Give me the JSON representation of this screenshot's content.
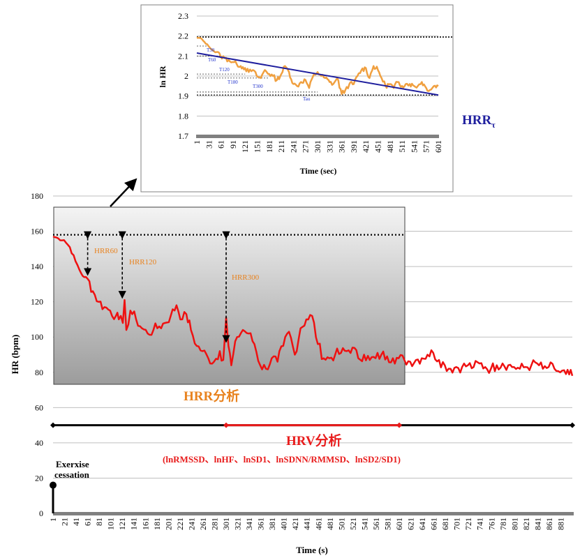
{
  "colors": {
    "hr_line": "#ee1111",
    "inset_line": "#f0a040",
    "hrr_text": "#e8821e",
    "hrv_text": "#e81b1b",
    "tau_line": "#1f1f9e",
    "annotation_blue": "#2233cc",
    "grid": "#bfbfbf",
    "axis_bar": "#808080",
    "black": "#000000"
  },
  "chart_data": [
    {
      "type": "line",
      "xlabel": "Time (s)",
      "ylabel": "HR (bpm)",
      "ylim": [
        0,
        180
      ],
      "yticks": [
        0,
        20,
        40,
        60,
        80,
        100,
        120,
        140,
        160,
        180
      ],
      "xlim": [
        1,
        901
      ],
      "xticks": [
        1,
        21,
        41,
        61,
        81,
        101,
        121,
        141,
        161,
        181,
        201,
        221,
        241,
        261,
        281,
        301,
        321,
        341,
        361,
        381,
        401,
        421,
        441,
        461,
        481,
        501,
        521,
        541,
        561,
        581,
        601,
        621,
        641,
        661,
        681,
        701,
        721,
        741,
        761,
        781,
        801,
        821,
        841,
        861,
        881
      ],
      "grid": true,
      "series": [
        {
          "x": [
            1,
            10,
            20,
            30,
            40,
            50,
            55,
            61,
            70,
            80,
            90,
            100,
            110,
            115,
            122,
            125,
            128,
            135,
            145,
            155,
            165,
            175,
            185,
            195,
            205,
            215,
            225,
            232,
            240,
            250,
            260,
            270,
            280,
            290,
            296,
            301,
            305,
            310,
            320,
            330,
            340,
            350,
            360,
            370,
            380,
            390,
            400,
            410,
            420,
            430,
            440,
            450,
            460,
            470,
            480,
            490,
            500,
            510,
            520,
            530,
            540,
            550,
            560,
            570,
            580,
            590,
            600,
            610,
            620,
            630,
            640,
            650,
            660,
            670,
            680,
            690,
            700,
            710,
            720,
            730,
            740,
            750,
            760,
            770,
            780,
            790,
            800,
            810,
            820,
            830,
            840,
            850,
            860,
            870,
            880,
            890,
            901
          ],
          "y": [
            157,
            156,
            155,
            151,
            143,
            136,
            134,
            133,
            126,
            120,
            117,
            115,
            112,
            110,
            108,
            121,
            104,
            115,
            110,
            105,
            102,
            104,
            106,
            108,
            112,
            118,
            110,
            113,
            104,
            95,
            92,
            88,
            86,
            92,
            87,
            111,
            95,
            84,
            100,
            104,
            102,
            96,
            84,
            82,
            88,
            86,
            95,
            103,
            90,
            105,
            110,
            112,
            96,
            88,
            88,
            90,
            91,
            92,
            94,
            88,
            90,
            87,
            88,
            90,
            89,
            88,
            88,
            87,
            86,
            87,
            88,
            90,
            91,
            87,
            84,
            82,
            83,
            83,
            84,
            83,
            85,
            83,
            82,
            84,
            85,
            84,
            83,
            82,
            83,
            84,
            85,
            82,
            83,
            82,
            80,
            79,
            78
          ]
        }
      ],
      "dotted_reference_y": 158,
      "annotations": [
        {
          "label": "HRR60"
        },
        {
          "label": "HRR120"
        },
        {
          "label": "HRR300"
        },
        {
          "label": "HRR分析"
        },
        {
          "label": "HRV分析"
        },
        {
          "label": "(lnRMSSD、lnHF、lnSD1、lnSDNN/RMMSD、lnSD2/SD1)"
        },
        {
          "label": "Exerxise"
        },
        {
          "label": "cessation"
        }
      ],
      "timeline_y": 50,
      "hrv_window": [
        301,
        601
      ],
      "marker_points": [
        {
          "x": 1,
          "y": 50
        },
        {
          "x": 301,
          "y": 50
        },
        {
          "x": 601,
          "y": 50
        },
        {
          "x": 901,
          "y": 50
        },
        {
          "x": 1,
          "y": 16
        }
      ]
    },
    {
      "type": "line",
      "xlabel": "Time (sec)",
      "ylabel": "ln HR",
      "ylim": [
        1.7,
        2.3
      ],
      "yticks": [
        1.7,
        1.8,
        1.9,
        2.0,
        2.1,
        2.2,
        2.3
      ],
      "ytick_labels": [
        "1.7",
        "1.8",
        "1.9",
        "2",
        "2.1",
        "2.2",
        "2.3"
      ],
      "xlim": [
        1,
        601
      ],
      "xticks": [
        1,
        31,
        61,
        91,
        121,
        151,
        181,
        211,
        241,
        271,
        301,
        331,
        361,
        391,
        421,
        451,
        481,
        511,
        541,
        571,
        601
      ],
      "grid": true,
      "series": [
        {
          "x": [
            1,
            10,
            20,
            30,
            40,
            50,
            60,
            70,
            80,
            90,
            100,
            110,
            121,
            130,
            140,
            150,
            160,
            170,
            181,
            190,
            200,
            211,
            220,
            230,
            241,
            250,
            260,
            271,
            280,
            290,
            301,
            310,
            320,
            331,
            340,
            350,
            361,
            370,
            380,
            391,
            400,
            410,
            421,
            430,
            440,
            451,
            460,
            470,
            481,
            490,
            500,
            511,
            520,
            530,
            541,
            550,
            560,
            571,
            580,
            590,
            601
          ],
          "y": [
            2.19,
            2.19,
            2.17,
            2.15,
            2.13,
            2.12,
            2.1,
            2.09,
            2.08,
            2.07,
            2.06,
            2.05,
            2.04,
            2.02,
            2.03,
            2.0,
            1.99,
            2.03,
            2.01,
            2.0,
            1.98,
            2.01,
            2.05,
            2.02,
            1.96,
            1.95,
            1.97,
            1.98,
            1.94,
            2.0,
            2.02,
            2.0,
            1.99,
            1.97,
            1.96,
            1.99,
            1.91,
            1.93,
            1.96,
            1.96,
            2.0,
            2.03,
            2.04,
            1.99,
            2.05,
            2.03,
            1.99,
            1.95,
            1.96,
            1.94,
            1.97,
            1.95,
            1.96,
            1.96,
            1.95,
            1.95,
            1.97,
            1.94,
            1.93,
            1.95,
            1.95
          ]
        },
        {
          "x": [
            1,
            601
          ],
          "y": [
            2.115,
            1.905
          ]
        }
      ],
      "reference_lines_y": [
        2.195,
        1.905
      ],
      "annotations": [
        {
          "label": "T30"
        },
        {
          "label": "T60"
        },
        {
          "label": "T120"
        },
        {
          "label": "T180"
        },
        {
          "label": "T300"
        },
        {
          "label": "Tau"
        }
      ],
      "side_label": "HRR",
      "side_label_subscript": "τ"
    }
  ]
}
